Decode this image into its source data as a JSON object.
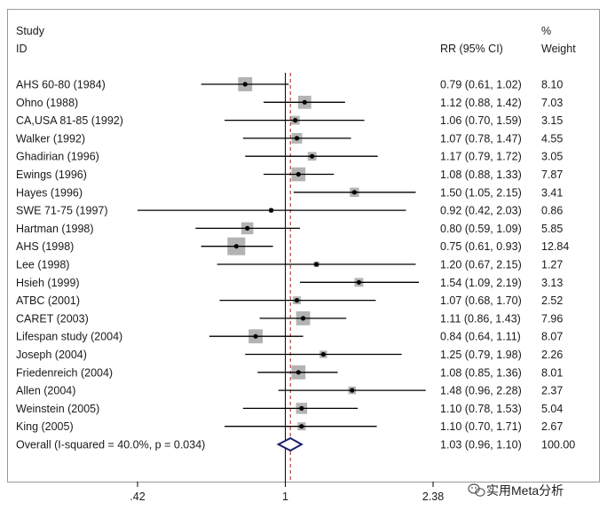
{
  "chart_data": {
    "type": "forest",
    "title": "",
    "headers": {
      "study_line1": "Study",
      "study_line2": "ID",
      "rr_label": "RR (95% CI)",
      "weight_line1": "%",
      "weight_line2": "Weight"
    },
    "x_scale": "log",
    "xlim": [
      0.42,
      2.38
    ],
    "x_ticks": [
      {
        "value": 0.42,
        "label": ".42"
      },
      {
        "value": 1,
        "label": "1"
      },
      {
        "value": 2.38,
        "label": "2.38"
      }
    ],
    "null_line": 1,
    "studies": [
      {
        "id": "AHS 60-80 (1984)",
        "rr": 0.79,
        "lo": 0.61,
        "hi": 1.02,
        "ci_text": "0.79 (0.61, 1.02)",
        "weight": 8.1,
        "weight_text": "8.10"
      },
      {
        "id": "Ohno (1988)",
        "rr": 1.12,
        "lo": 0.88,
        "hi": 1.42,
        "ci_text": "1.12 (0.88, 1.42)",
        "weight": 7.03,
        "weight_text": "7.03"
      },
      {
        "id": "CA,USA 81-85 (1992)",
        "rr": 1.06,
        "lo": 0.7,
        "hi": 1.59,
        "ci_text": "1.06 (0.70, 1.59)",
        "weight": 3.15,
        "weight_text": "3.15"
      },
      {
        "id": "Walker (1992)",
        "rr": 1.07,
        "lo": 0.78,
        "hi": 1.47,
        "ci_text": "1.07 (0.78, 1.47)",
        "weight": 4.55,
        "weight_text": "4.55"
      },
      {
        "id": "Ghadirian (1996)",
        "rr": 1.17,
        "lo": 0.79,
        "hi": 1.72,
        "ci_text": "1.17 (0.79, 1.72)",
        "weight": 3.05,
        "weight_text": "3.05"
      },
      {
        "id": "Ewings (1996)",
        "rr": 1.08,
        "lo": 0.88,
        "hi": 1.33,
        "ci_text": "1.08 (0.88, 1.33)",
        "weight": 7.87,
        "weight_text": "7.87"
      },
      {
        "id": "Hayes (1996)",
        "rr": 1.5,
        "lo": 1.05,
        "hi": 2.15,
        "ci_text": "1.50 (1.05, 2.15)",
        "weight": 3.41,
        "weight_text": "3.41"
      },
      {
        "id": "SWE 71-75 (1997)",
        "rr": 0.92,
        "lo": 0.42,
        "hi": 2.03,
        "ci_text": "0.92 (0.42, 2.03)",
        "weight": 0.86,
        "weight_text": "0.86"
      },
      {
        "id": "Hartman (1998)",
        "rr": 0.8,
        "lo": 0.59,
        "hi": 1.09,
        "ci_text": "0.80 (0.59, 1.09)",
        "weight": 5.85,
        "weight_text": "5.85"
      },
      {
        "id": "AHS (1998)",
        "rr": 0.75,
        "lo": 0.61,
        "hi": 0.93,
        "ci_text": "0.75 (0.61, 0.93)",
        "weight": 12.84,
        "weight_text": "12.84"
      },
      {
        "id": "Lee (1998)",
        "rr": 1.2,
        "lo": 0.67,
        "hi": 2.15,
        "ci_text": "1.20 (0.67, 2.15)",
        "weight": 1.27,
        "weight_text": "1.27"
      },
      {
        "id": "Hsieh (1999)",
        "rr": 1.54,
        "lo": 1.09,
        "hi": 2.19,
        "ci_text": "1.54 (1.09, 2.19)",
        "weight": 3.13,
        "weight_text": "3.13"
      },
      {
        "id": "ATBC (2001)",
        "rr": 1.07,
        "lo": 0.68,
        "hi": 1.7,
        "ci_text": "1.07 (0.68, 1.70)",
        "weight": 2.52,
        "weight_text": "2.52"
      },
      {
        "id": "CARET (2003)",
        "rr": 1.11,
        "lo": 0.86,
        "hi": 1.43,
        "ci_text": "1.11 (0.86, 1.43)",
        "weight": 7.96,
        "weight_text": "7.96"
      },
      {
        "id": "Lifespan study (2004)",
        "rr": 0.84,
        "lo": 0.64,
        "hi": 1.11,
        "ci_text": "0.84 (0.64, 1.11)",
        "weight": 8.07,
        "weight_text": "8.07"
      },
      {
        "id": "Joseph (2004)",
        "rr": 1.25,
        "lo": 0.79,
        "hi": 1.98,
        "ci_text": "1.25 (0.79, 1.98)",
        "weight": 2.26,
        "weight_text": "2.26"
      },
      {
        "id": "Friedenreich (2004)",
        "rr": 1.08,
        "lo": 0.85,
        "hi": 1.36,
        "ci_text": "1.08 (0.85, 1.36)",
        "weight": 8.01,
        "weight_text": "8.01"
      },
      {
        "id": "Allen (2004)",
        "rr": 1.48,
        "lo": 0.96,
        "hi": 2.28,
        "ci_text": "1.48 (0.96, 2.28)",
        "weight": 2.37,
        "weight_text": "2.37"
      },
      {
        "id": "Weinstein (2005)",
        "rr": 1.1,
        "lo": 0.78,
        "hi": 1.53,
        "ci_text": "1.10 (0.78, 1.53)",
        "weight": 5.04,
        "weight_text": "5.04"
      },
      {
        "id": "King (2005)",
        "rr": 1.1,
        "lo": 0.7,
        "hi": 1.71,
        "ci_text": "1.10 (0.70, 1.71)",
        "weight": 2.67,
        "weight_text": "2.67"
      }
    ],
    "overall": {
      "label": "Overall  (I-squared = 40.0%, p = 0.034)",
      "rr": 1.03,
      "lo": 0.96,
      "hi": 1.1,
      "ci_text": "1.03 (0.96, 1.10)",
      "weight": 100.0,
      "weight_text": "100.00"
    },
    "colors": {
      "box": "#b3b3b3",
      "line": "#000000",
      "diamond": "#1a1f6e",
      "null_line": "#000000",
      "overall_line": "#b02020",
      "frame": "#9a9a9a"
    }
  },
  "watermark": {
    "icon": "wechat-icon",
    "text": "实用Meta分析"
  }
}
